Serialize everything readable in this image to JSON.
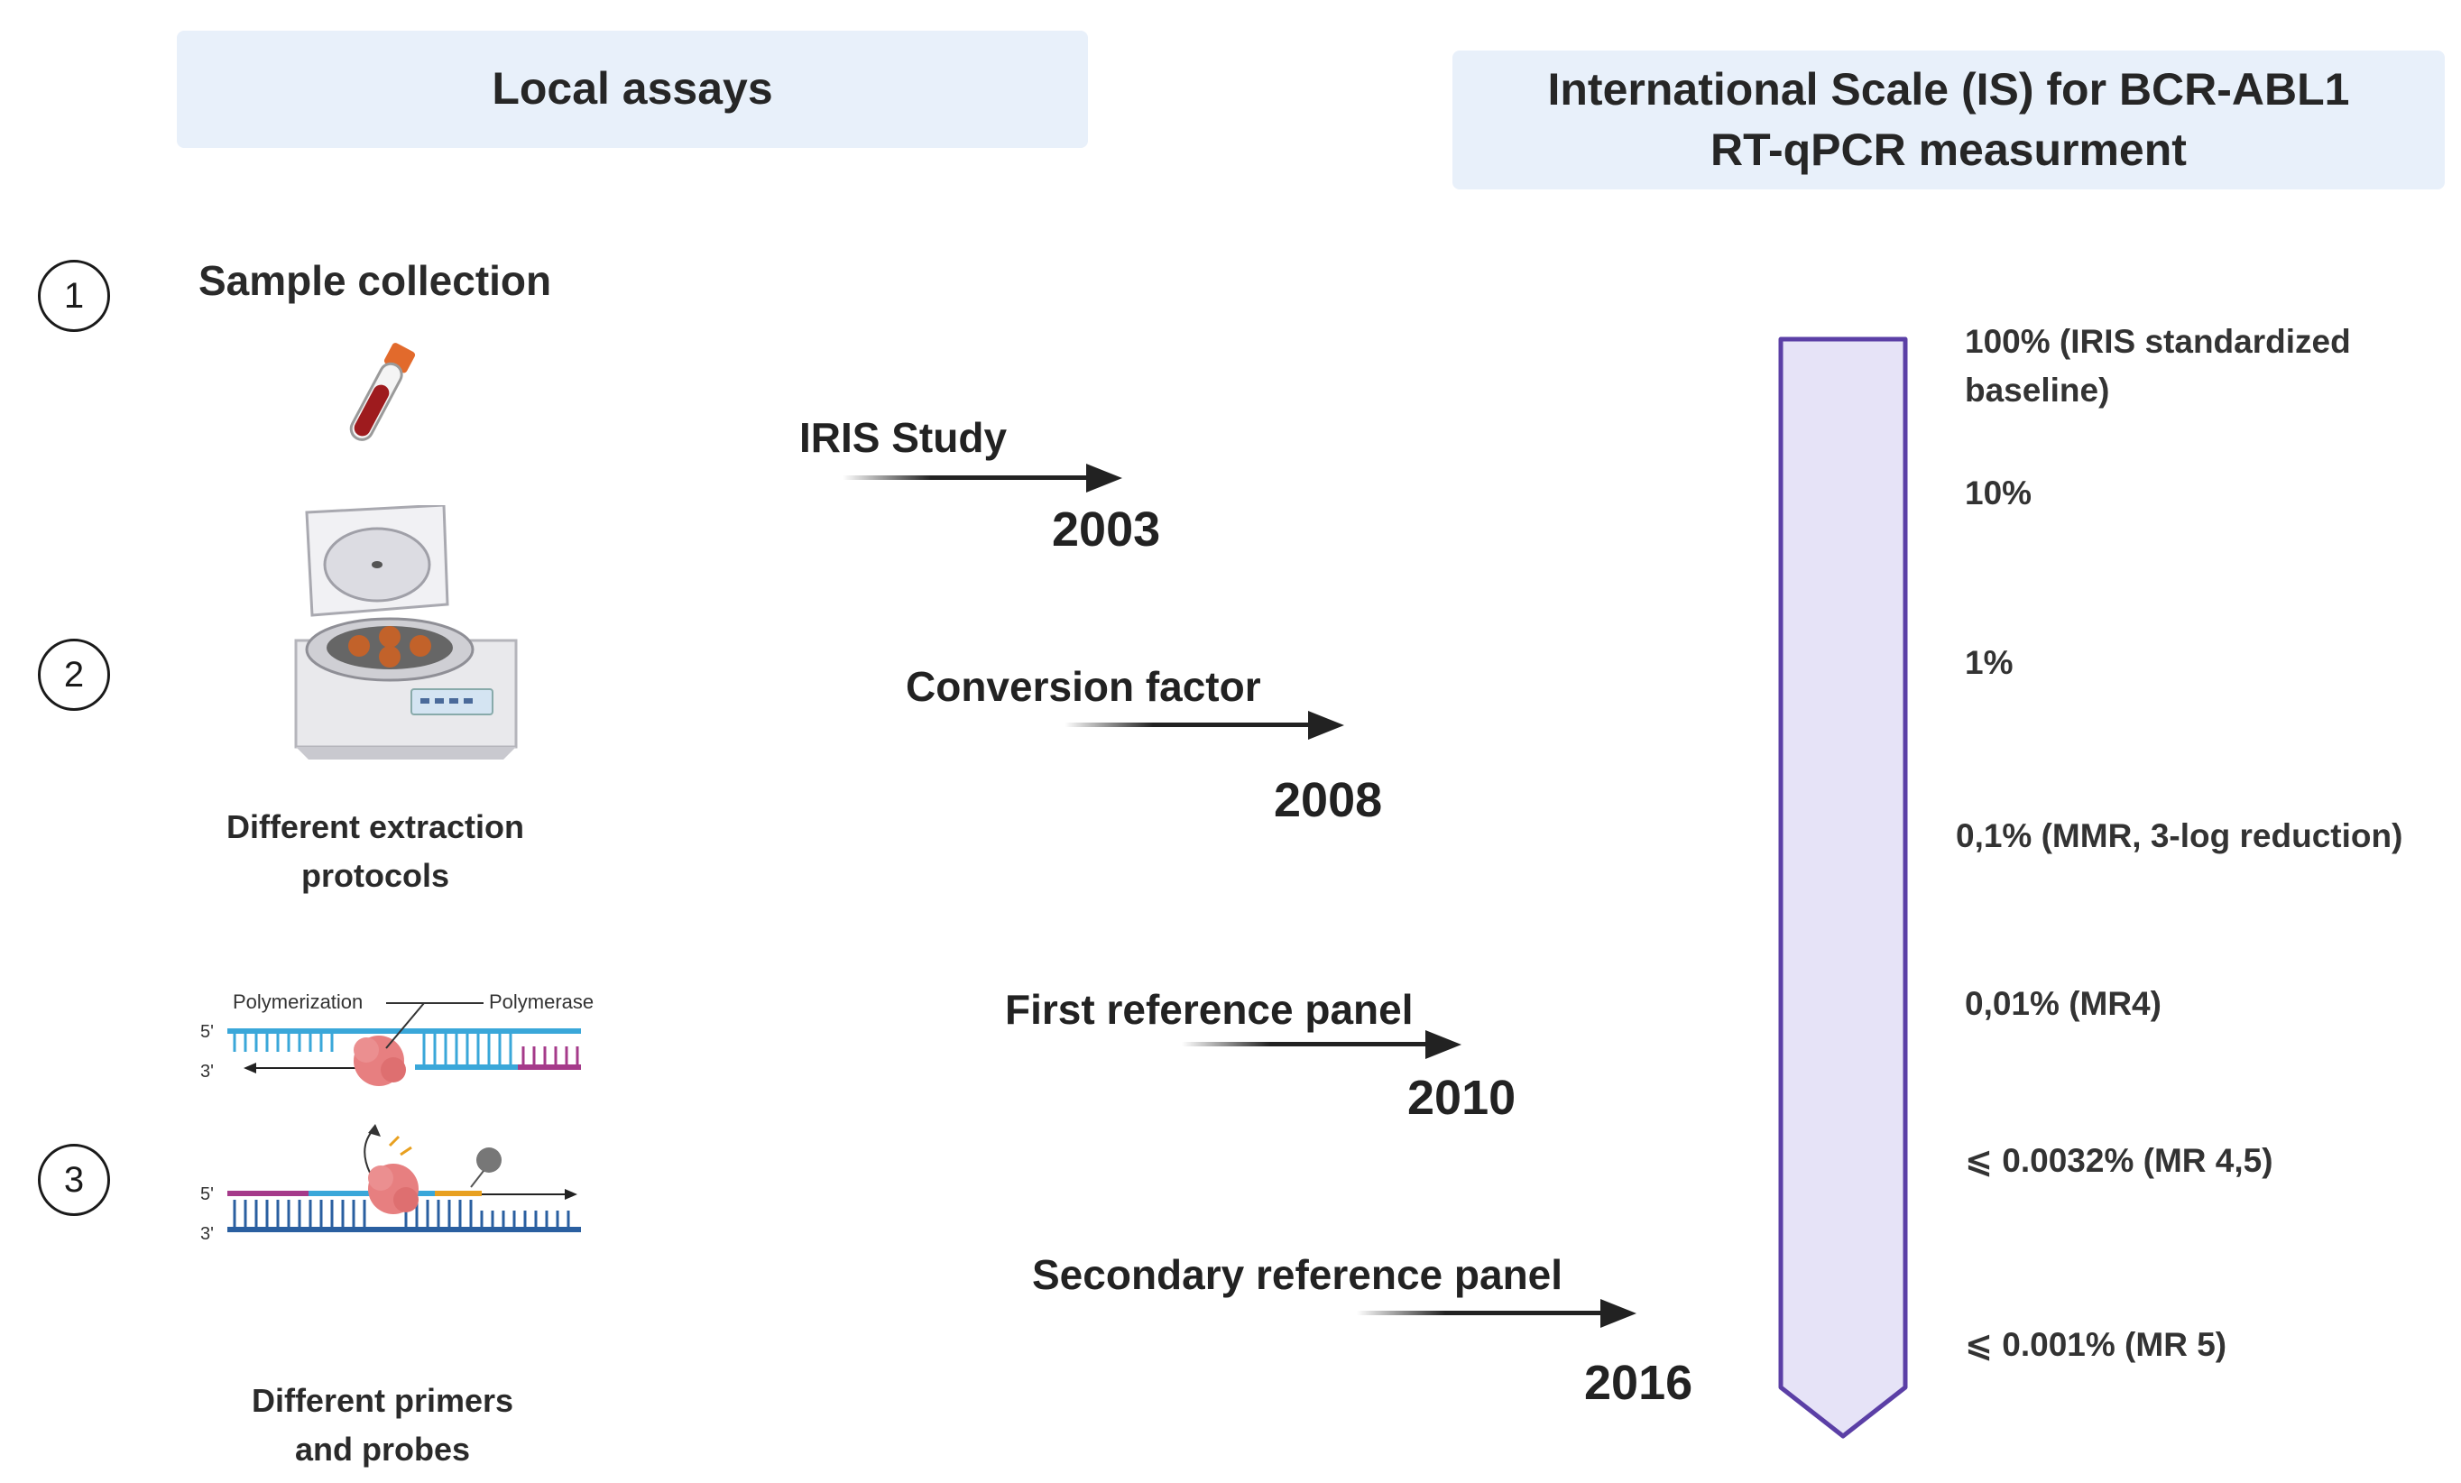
{
  "left_header": {
    "title": "Local assays"
  },
  "right_header": {
    "line1": "International Scale (IS) for BCR-ABL1",
    "line2": "RT-qPCR measurment"
  },
  "steps": [
    {
      "number": "1",
      "label": "Sample collection"
    },
    {
      "number": "2",
      "caption_line1": "Different extraction",
      "caption_line2": "protocols"
    },
    {
      "number": "3",
      "caption_line1": "Different primers",
      "caption_line2": "and probes"
    }
  ],
  "pcr_diagram": {
    "polymerization": "Polymerization",
    "polymerase": "Polymerase",
    "five_prime": "5'",
    "three_prime": "3'"
  },
  "timeline": [
    {
      "label": "IRIS Study",
      "year": "2003"
    },
    {
      "label": "Conversion factor",
      "year": "2008"
    },
    {
      "label": "First reference panel",
      "year": "2010"
    },
    {
      "label": "Secondary reference panel",
      "year": "2016"
    }
  ],
  "scale": {
    "levels": [
      {
        "text_line1": "100% (IRIS standardized",
        "text_line2": "baseline)"
      },
      {
        "text_line1": "10%"
      },
      {
        "text_line1": "1%"
      },
      {
        "text_line1": "0,1% (MMR, 3-log reduction)"
      },
      {
        "text_line1": "0,01% (MR4)"
      },
      {
        "text_line1": "⩽ 0.0032% (MR 4,5)"
      },
      {
        "text_line1": "⩽ 0.001% (MR 5)"
      }
    ],
    "fill_color": "#e6e3f7",
    "stroke_color": "#5b3fa6"
  }
}
